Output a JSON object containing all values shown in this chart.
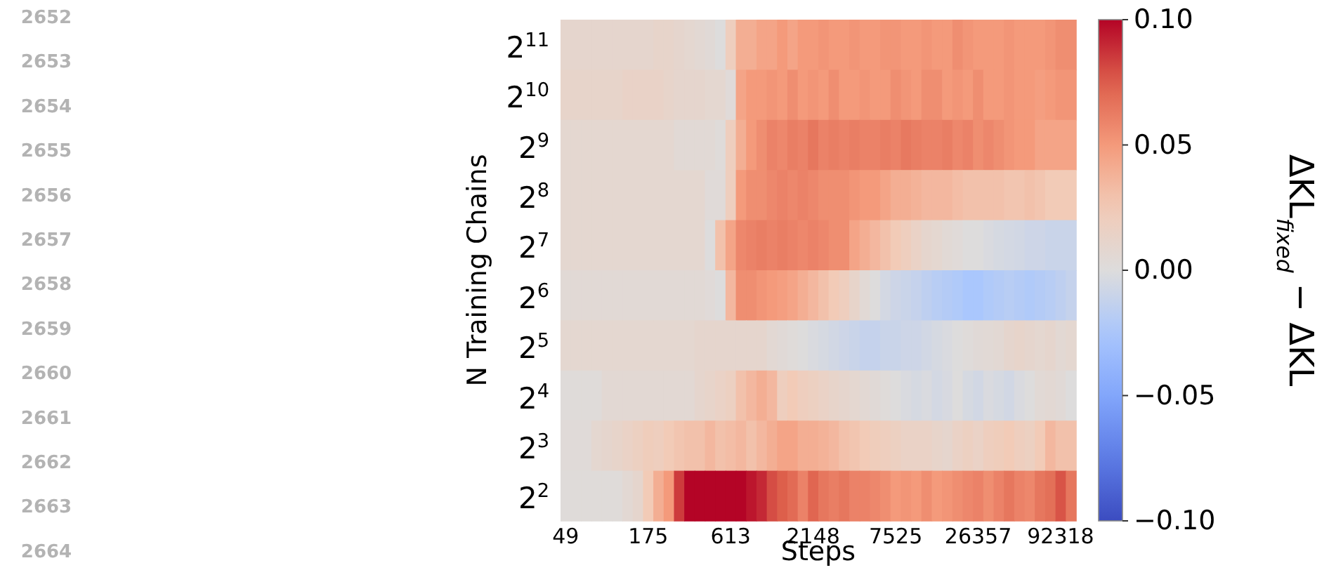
{
  "chart_data": {
    "type": "heatmap",
    "xlabel": "Steps",
    "ylabel": "N Training Chains",
    "clabel": "ΔKL$_{fixed}$ − ΔKL",
    "categories": [
      "49",
      null,
      null,
      null,
      null,
      null,
      null,
      null,
      "175",
      null,
      null,
      null,
      null,
      null,
      null,
      null,
      "613",
      null,
      null,
      null,
      null,
      null,
      null,
      null,
      "2148",
      null,
      null,
      null,
      null,
      null,
      null,
      null,
      "7525",
      null,
      null,
      null,
      null,
      null,
      null,
      null,
      "26357",
      null,
      null,
      null,
      null,
      null,
      null,
      null,
      "92318",
      null
    ],
    "y_categories": [
      "2$^{11}$",
      "2$^{10}$",
      "2$^{9}$",
      "2$^{8}$",
      "2$^{7}$",
      "2$^{6}$",
      "2$^{5}$",
      "2$^{4}$",
      "2$^{3}$",
      "2$^{2}$"
    ],
    "cells": [
      [
        0.01,
        0.01,
        0.01,
        0.01,
        0.01,
        0.01,
        0.01,
        0.01,
        0.01,
        0.012,
        0.012,
        0.01,
        0.008,
        0.006,
        0.004,
        0,
        0.02,
        0.04,
        0.04,
        0.045,
        0.045,
        0.05,
        0.045,
        0.05,
        0.05,
        0.052,
        0.05,
        0.05,
        0.052,
        0.05,
        0.05,
        0.052,
        0.052,
        0.05,
        0.05,
        0.052,
        0.05,
        0.05,
        0.055,
        0.052,
        0.05,
        0.05,
        0.05,
        0.052,
        0.05,
        0.05,
        0.05,
        0.052,
        0.055,
        0.055
      ],
      [
        0.012,
        0.012,
        0.012,
        0.012,
        0.012,
        0.012,
        0.014,
        0.014,
        0.014,
        0.014,
        0.012,
        0.01,
        0.01,
        0.01,
        0.008,
        0.008,
        0.003,
        0.045,
        0.05,
        0.05,
        0.052,
        0.05,
        0.055,
        0.05,
        0.052,
        0.05,
        0.055,
        0.05,
        0.05,
        0.052,
        0.05,
        0.05,
        0.055,
        0.052,
        0.05,
        0.055,
        0.055,
        0.05,
        0.052,
        0.05,
        0.055,
        0.05,
        0.05,
        0.052,
        0.05,
        0.05,
        0.048,
        0.05,
        0.052,
        0.052
      ],
      [
        0.008,
        0.008,
        0.008,
        0.008,
        0.008,
        0.008,
        0.008,
        0.008,
        0.008,
        0.008,
        0.008,
        0.005,
        0.005,
        0.005,
        0.005,
        0.002,
        0.02,
        0.04,
        0.05,
        0.055,
        0.06,
        0.058,
        0.062,
        0.06,
        0.065,
        0.06,
        0.062,
        0.06,
        0.062,
        0.06,
        0.06,
        0.062,
        0.06,
        0.064,
        0.062,
        0.06,
        0.06,
        0.062,
        0.058,
        0.06,
        0.055,
        0.058,
        0.055,
        0.052,
        0.05,
        0.05,
        0.045,
        0.045,
        0.045,
        0.045
      ],
      [
        0.008,
        0.008,
        0.008,
        0.008,
        0.008,
        0.008,
        0.008,
        0.008,
        0.008,
        0.008,
        0.008,
        0.008,
        0.008,
        0.008,
        0.003,
        0.003,
        0.02,
        0.05,
        0.055,
        0.055,
        0.058,
        0.06,
        0.058,
        0.06,
        0.058,
        0.055,
        0.055,
        0.055,
        0.052,
        0.05,
        0.05,
        0.045,
        0.04,
        0.04,
        0.038,
        0.035,
        0.035,
        0.035,
        0.032,
        0.03,
        0.03,
        0.03,
        0.03,
        0.028,
        0.028,
        0.03,
        0.028,
        0.025,
        0.025,
        0.025
      ],
      [
        0.008,
        0.008,
        0.008,
        0.008,
        0.008,
        0.008,
        0.008,
        0.008,
        0.008,
        0.008,
        0.008,
        0.008,
        0.008,
        0.008,
        0,
        0.03,
        0.045,
        0.058,
        0.06,
        0.062,
        0.06,
        0.062,
        0.06,
        0.058,
        0.06,
        0.058,
        0.055,
        0.055,
        0.045,
        0.04,
        0.035,
        0.03,
        0.025,
        0.02,
        0.015,
        0.01,
        0.008,
        0.005,
        0.003,
        0,
        0,
        -0.002,
        -0.004,
        -0.005,
        -0.006,
        -0.008,
        -0.008,
        -0.01,
        -0.01,
        -0.01
      ],
      [
        0.005,
        0.005,
        0.005,
        0.005,
        0.005,
        0.005,
        0.005,
        0.005,
        0.005,
        0.005,
        0.005,
        0.005,
        0.005,
        0.005,
        0.003,
        0,
        0.035,
        0.055,
        0.055,
        0.052,
        0.05,
        0.048,
        0.045,
        0.04,
        0.035,
        0.03,
        0.025,
        0.02,
        0.012,
        0.005,
        0,
        -0.005,
        -0.008,
        -0.01,
        -0.012,
        -0.015,
        -0.018,
        -0.02,
        -0.022,
        -0.025,
        -0.025,
        -0.022,
        -0.02,
        -0.018,
        -0.02,
        -0.022,
        -0.02,
        -0.018,
        -0.015,
        -0.012
      ],
      [
        0.008,
        0.008,
        0.008,
        0.008,
        0.008,
        0.008,
        0.008,
        0.008,
        0.008,
        0.008,
        0.008,
        0.008,
        0.008,
        0.01,
        0.01,
        0.01,
        0.01,
        0.01,
        0.01,
        0.01,
        0.006,
        0.004,
        0.002,
        0,
        -0.002,
        -0.004,
        -0.006,
        -0.008,
        -0.01,
        -0.012,
        -0.012,
        -0.01,
        -0.01,
        -0.008,
        -0.008,
        -0.006,
        -0.004,
        -0.002,
        0,
        0.002,
        0.004,
        0.005,
        0.006,
        0.01,
        0.012,
        0.01,
        0.008,
        0.01,
        0.006,
        0.008
      ],
      [
        0.002,
        0.002,
        0.002,
        0.002,
        0.006,
        0.006,
        0.006,
        0.006,
        0.006,
        0.006,
        0.006,
        0.006,
        0.006,
        0.01,
        0.012,
        0.015,
        0.018,
        0.03,
        0.035,
        0.04,
        0.035,
        0.02,
        0.025,
        0.02,
        0.018,
        0.015,
        0.012,
        0.01,
        0.008,
        0.006,
        0.004,
        0.002,
        0,
        -0.002,
        -0.004,
        -0.002,
        -0.005,
        -0.003,
        0,
        -0.004,
        -0.006,
        -0.002,
        -0.004,
        -0.006,
        -0.002,
        0,
        0.005,
        0.006,
        0.004,
        0
      ],
      [
        0.003,
        0.003,
        0.003,
        0.008,
        0.01,
        0.012,
        0.015,
        0.018,
        0.022,
        0.02,
        0.025,
        0.028,
        0.03,
        0.03,
        0.035,
        0.03,
        0.032,
        0.035,
        0.03,
        0.035,
        0.04,
        0.045,
        0.045,
        0.04,
        0.04,
        0.038,
        0.035,
        0.03,
        0.028,
        0.025,
        0.022,
        0.02,
        0.018,
        0.015,
        0.015,
        0.015,
        0.012,
        0.01,
        0.015,
        0.018,
        0.015,
        0.02,
        0.022,
        0.025,
        0.02,
        0.018,
        0.025,
        0.035,
        0.03,
        0.03
      ],
      [
        0.002,
        0.002,
        0.002,
        0.002,
        0.002,
        0.002,
        0.006,
        0.01,
        0.025,
        0.04,
        0.05,
        0.085,
        0.1,
        0.1,
        0.1,
        0.1,
        0.1,
        0.1,
        0.095,
        0.09,
        0.08,
        0.075,
        0.07,
        0.06,
        0.072,
        0.065,
        0.062,
        0.065,
        0.06,
        0.06,
        0.058,
        0.055,
        0.05,
        0.052,
        0.05,
        0.055,
        0.05,
        0.052,
        0.055,
        0.058,
        0.06,
        0.055,
        0.06,
        0.065,
        0.06,
        0.058,
        0.065,
        0.068,
        0.078,
        0.065
      ]
    ],
    "clim": [
      -0.1,
      0.1
    ],
    "cticks": [
      {
        "value": 0.1,
        "label": "0.10"
      },
      {
        "value": 0.05,
        "label": "0.05"
      },
      {
        "value": 0,
        "label": "0.00"
      },
      {
        "value": -0.05,
        "label": "−0.05"
      },
      {
        "value": -0.1,
        "label": "−0.10"
      }
    ],
    "annotations": [
      "2652",
      "2653",
      "2654",
      "2655",
      "2656",
      "2657",
      "2658",
      "2659",
      "2660",
      "2661",
      "2662",
      "2663",
      "2664"
    ]
  }
}
